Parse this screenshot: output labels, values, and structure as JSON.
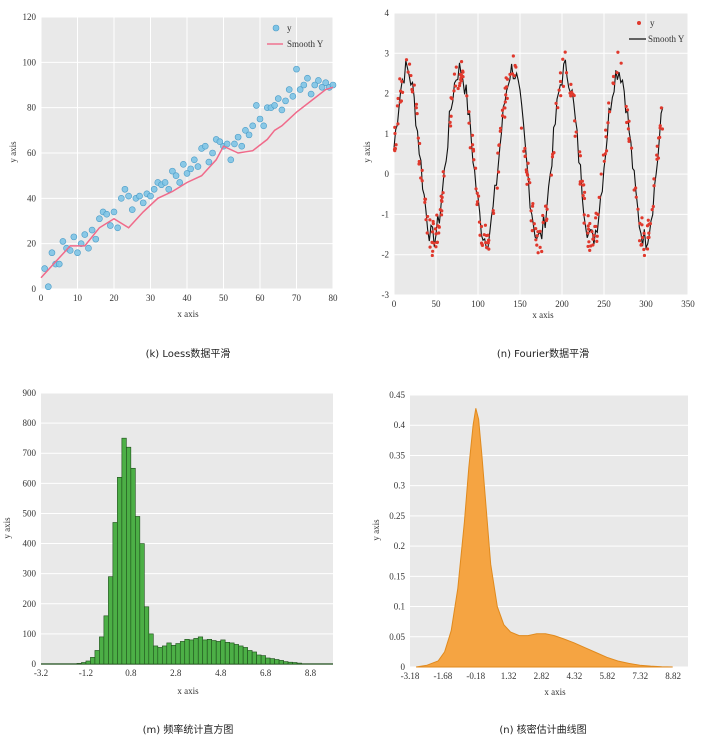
{
  "colors": {
    "panel_bg": "#e9e9e9",
    "grid": "#ffffff",
    "loess_point": "#7ec4e6",
    "loess_point_edge": "#4a9cc8",
    "loess_line": "#f06a8a",
    "fourier_point": "#e0382c",
    "fourier_line": "#111111",
    "hist_bar": "#4caf46",
    "hist_edge": "#1d4d1a",
    "kde_fill": "#f5a442",
    "kde_edge": "#e08a1e"
  },
  "captions": {
    "k": "(k) Loess数据平滑",
    "n1": "(n) Fourier数据平滑",
    "m": "(m) 频率统计直方图",
    "n2": "(n) 核密估计曲线图"
  },
  "chart_data": [
    {
      "id": "loess",
      "type": "scatter",
      "xlabel": "x axis",
      "ylabel": "y axis",
      "xlim": [
        0,
        80
      ],
      "ylim": [
        0,
        120
      ],
      "xticks": [
        0,
        10,
        20,
        30,
        40,
        50,
        60,
        70,
        80
      ],
      "yticks": [
        0,
        20,
        40,
        60,
        80,
        100,
        120
      ],
      "legend": [
        "y",
        "Smooth Y"
      ],
      "legend_position": "top-right",
      "grid": true,
      "series": [
        {
          "name": "y",
          "mode": "markers",
          "x": [
            1,
            2,
            3,
            4,
            5,
            6,
            7,
            8,
            9,
            10,
            11,
            12,
            13,
            14,
            15,
            16,
            17,
            18,
            19,
            20,
            21,
            22,
            23,
            24,
            25,
            26,
            27,
            28,
            29,
            30,
            31,
            32,
            33,
            34,
            35,
            36,
            37,
            38,
            39,
            40,
            41,
            42,
            43,
            44,
            45,
            46,
            47,
            48,
            49,
            50,
            51,
            52,
            53,
            54,
            55,
            56,
            57,
            58,
            59,
            60,
            61,
            62,
            63,
            64,
            65,
            66,
            67,
            68,
            69,
            70,
            71,
            72,
            73,
            74,
            75,
            76,
            77,
            78,
            79,
            80
          ],
          "y": [
            9,
            1,
            16,
            11,
            11,
            21,
            18,
            17,
            23,
            16,
            20,
            24,
            18,
            26,
            22,
            31,
            34,
            33,
            28,
            34,
            27,
            40,
            44,
            41,
            35,
            40,
            41,
            38,
            42,
            41,
            44,
            47,
            46,
            47,
            44,
            52,
            50,
            47,
            55,
            51,
            53,
            57,
            54,
            62,
            63,
            56,
            60,
            66,
            65,
            63,
            64,
            57,
            64,
            67,
            63,
            70,
            68,
            72,
            81,
            75,
            72,
            80,
            80,
            81,
            84,
            79,
            83,
            88,
            85,
            97,
            88,
            90,
            93,
            86,
            90,
            92,
            89,
            91,
            89,
            90
          ]
        },
        {
          "name": "Smooth Y",
          "mode": "line",
          "x": [
            0,
            4,
            8,
            12,
            16,
            20,
            24,
            28,
            32,
            36,
            40,
            44,
            48,
            50,
            54,
            58,
            62,
            64,
            66,
            70,
            74,
            78,
            80
          ],
          "y": [
            5,
            12,
            19,
            19,
            27,
            31,
            27,
            34,
            40,
            43,
            47,
            50,
            57,
            63,
            60,
            61,
            66,
            70,
            72,
            78,
            83,
            88,
            89
          ]
        }
      ]
    },
    {
      "id": "fourier",
      "type": "scatter",
      "xlabel": "x axis",
      "ylabel": "y axis",
      "xlim": [
        0,
        350
      ],
      "ylim": [
        -3,
        4
      ],
      "xticks": [
        0,
        50,
        100,
        150,
        200,
        250,
        300,
        350
      ],
      "yticks": [
        -3,
        -2,
        -1,
        0,
        1,
        2,
        3,
        4
      ],
      "legend": [
        "y",
        "Smooth Y"
      ],
      "legend_position": "top-right",
      "grid": true,
      "signal": {
        "offset": 0.5,
        "amplitude": 2.1,
        "period": 63,
        "x_peak": 15,
        "x_max": 320
      }
    },
    {
      "id": "histogram",
      "type": "bar",
      "xlabel": "x axis",
      "ylabel": "y axis",
      "xlim": [
        -3.2,
        9.8
      ],
      "ylim": [
        0,
        900
      ],
      "xticks": [
        -3.2,
        -1.2,
        0.8,
        2.8,
        4.8,
        6.8,
        8.8
      ],
      "yticks": [
        0,
        100,
        200,
        300,
        400,
        500,
        600,
        700,
        800,
        900
      ],
      "grid": true,
      "bin_start": -1.6,
      "bin_width": 0.2,
      "values": [
        2,
        5,
        10,
        22,
        45,
        90,
        160,
        290,
        470,
        620,
        750,
        720,
        650,
        490,
        400,
        190,
        100,
        60,
        55,
        60,
        70,
        62,
        68,
        75,
        82,
        80,
        85,
        90,
        80,
        82,
        78,
        75,
        80,
        72,
        70,
        65,
        60,
        55,
        45,
        40,
        30,
        28,
        20,
        18,
        15,
        12,
        8,
        6,
        5,
        3
      ]
    },
    {
      "id": "kde",
      "type": "area",
      "xlabel": "x axis",
      "ylabel": "y axis",
      "xlim": [
        -3.18,
        9.5
      ],
      "ylim": [
        0,
        0.45
      ],
      "xticks": [
        -3.18,
        -1.68,
        -0.18,
        1.32,
        2.82,
        4.32,
        5.82,
        7.32,
        8.82
      ],
      "yticks": [
        0,
        0.05,
        0.1,
        0.15,
        0.2,
        0.25,
        0.3,
        0.35,
        0.4,
        0.45
      ],
      "grid": true,
      "x": [
        -2.9,
        -2.4,
        -1.9,
        -1.6,
        -1.3,
        -1.0,
        -0.7,
        -0.5,
        -0.3,
        -0.18,
        -0.05,
        0.1,
        0.3,
        0.5,
        0.8,
        1.1,
        1.4,
        1.8,
        2.2,
        2.6,
        3.0,
        3.4,
        3.8,
        4.3,
        4.8,
        5.3,
        5.8,
        6.3,
        6.8,
        7.3,
        7.8,
        8.3,
        8.8
      ],
      "y": [
        0.0,
        0.003,
        0.01,
        0.025,
        0.06,
        0.13,
        0.24,
        0.33,
        0.4,
        0.428,
        0.41,
        0.35,
        0.26,
        0.17,
        0.1,
        0.07,
        0.058,
        0.052,
        0.052,
        0.055,
        0.055,
        0.052,
        0.047,
        0.04,
        0.032,
        0.024,
        0.016,
        0.01,
        0.006,
        0.003,
        0.0015,
        0.0005,
        0.0
      ]
    }
  ]
}
